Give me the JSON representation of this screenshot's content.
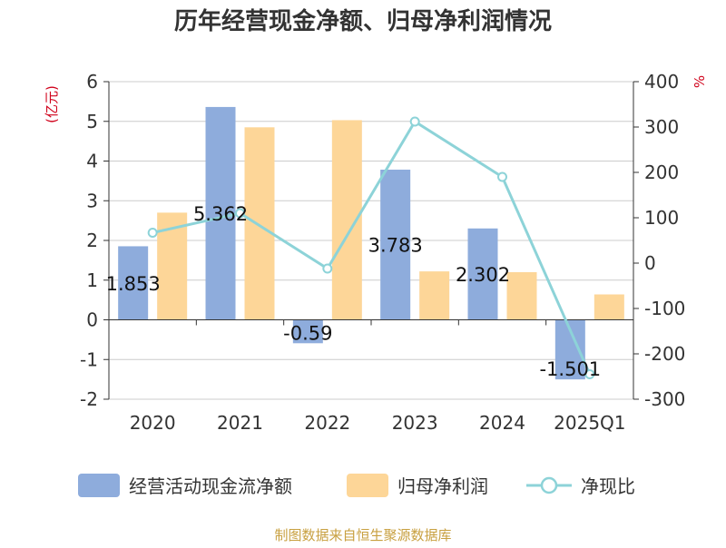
{
  "chart_data": {
    "type": "bar",
    "title": "历年经营现金净额、归母净利润情况",
    "categories": [
      "2020",
      "2021",
      "2022",
      "2023",
      "2024",
      "2025Q1"
    ],
    "y_left": {
      "unit_label": "(亿元)",
      "ticks": [
        "6",
        "5",
        "4",
        "3",
        "2",
        "1",
        "0",
        "-1",
        "-2"
      ],
      "range": [
        -2,
        6
      ]
    },
    "y_right": {
      "unit_label": "%",
      "ticks": [
        "400",
        "300",
        "200",
        "100",
        "0",
        "-100",
        "-200",
        "-300"
      ],
      "range": [
        -300,
        400
      ]
    },
    "series": [
      {
        "name": "经营活动现金流净额",
        "kind": "bar",
        "axis": "left",
        "color": "#8eacdc",
        "values": [
          1.853,
          5.362,
          -0.59,
          3.783,
          2.302,
          -1.501
        ],
        "labels": [
          "1.853",
          "5.362",
          "-0.59",
          "3.783",
          "2.302",
          "-1.501"
        ]
      },
      {
        "name": "归母净利润",
        "kind": "bar",
        "axis": "left",
        "color": "#fdd698",
        "values": [
          2.7,
          4.85,
          5.03,
          1.22,
          1.2,
          0.64
        ]
      },
      {
        "name": "净现比",
        "kind": "line",
        "axis": "right",
        "color": "#8dd3d8",
        "values": [
          67,
          110,
          -12,
          312,
          190,
          -245
        ]
      }
    ],
    "legend": {
      "position": "bottom"
    },
    "grid": true
  },
  "footer": {
    "source": "制图数据来自恒生聚源数据库"
  }
}
